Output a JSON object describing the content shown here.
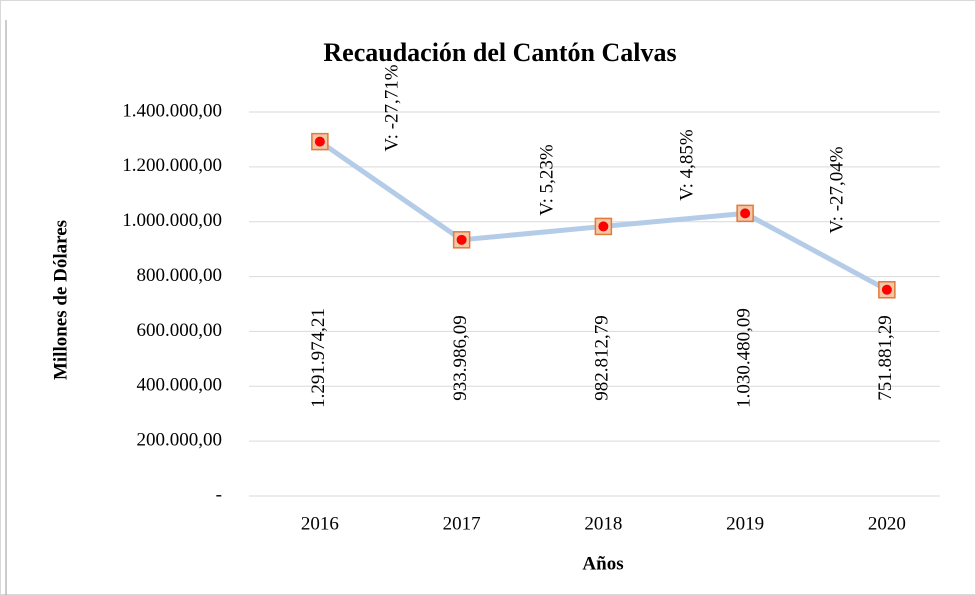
{
  "chart_data": {
    "type": "line",
    "title": "Recaudación del Cantón Calvas",
    "x_label": "Años",
    "y_label": "Millones de Dólares",
    "categories": [
      "2016",
      "2017",
      "2018",
      "2019",
      "2020"
    ],
    "values": [
      1291974.21,
      933986.09,
      982812.79,
      1030480.09,
      751881.29
    ],
    "value_labels": [
      "1.291.974,21",
      "933.986,09",
      "982.812,79",
      "1.030.480,09",
      "751.881,29"
    ],
    "annotations": [
      "V: -27,71%",
      "V: 5,23%",
      "V: 4,85%",
      "V: -27,04%"
    ],
    "color": "#b4cce8",
    "marker_color": "#ff0000",
    "ylim": [
      0,
      1400000
    ],
    "yticks": [
      {
        "value": 0,
        "label": "-"
      },
      {
        "value": 200000,
        "label": "200.000,00"
      },
      {
        "value": 400000,
        "label": "400.000,00"
      },
      {
        "value": 600000,
        "label": "600.000,00"
      },
      {
        "value": 800000,
        "label": "800.000,00"
      },
      {
        "value": 1000000,
        "label": "1.000.000,00"
      },
      {
        "value": 1200000,
        "label": "1.200.000,00"
      },
      {
        "value": 1400000,
        "label": "1.400.000,00"
      }
    ],
    "grid": true
  }
}
